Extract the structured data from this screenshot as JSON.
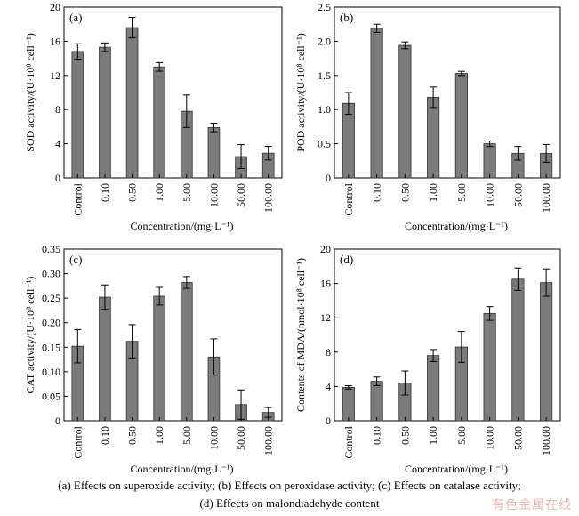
{
  "chart_data": [
    {
      "type": "bar",
      "panel": "(a)",
      "ylabel": "SOD activity/(U·10⁸ cell⁻¹)",
      "xlabel": "Concentration/(mg·L⁻¹)",
      "categories": [
        "Control",
        "0.10",
        "0.50",
        "1.00",
        "5.00",
        "10.00",
        "50.00",
        "100.00"
      ],
      "values": [
        14.8,
        15.3,
        17.6,
        13.0,
        7.8,
        5.9,
        2.5,
        2.9
      ],
      "errors": [
        0.9,
        0.5,
        1.2,
        0.5,
        1.9,
        0.5,
        1.4,
        0.8
      ],
      "ylim": [
        0,
        20
      ],
      "yticks": [
        0,
        4,
        8,
        12,
        16,
        20
      ],
      "ytick_labels": [
        "0",
        "4",
        "8",
        "12",
        "16",
        "20"
      ]
    },
    {
      "type": "bar",
      "panel": "(b)",
      "ylabel": "POD activity/(U·10⁸ cell⁻¹)",
      "xlabel": "Concentration/(mg·L⁻¹)",
      "categories": [
        "Control",
        "0.10",
        "0.50",
        "1.00",
        "5.00",
        "10.00",
        "50.00",
        "100.00"
      ],
      "values": [
        1.09,
        2.19,
        1.94,
        1.18,
        1.53,
        0.5,
        0.36,
        0.36
      ],
      "errors": [
        0.16,
        0.06,
        0.05,
        0.15,
        0.03,
        0.04,
        0.1,
        0.13
      ],
      "ylim": [
        0,
        2.5
      ],
      "yticks": [
        0,
        0.5,
        1.0,
        1.5,
        2.0,
        2.5
      ],
      "ytick_labels": [
        "0",
        "0.5",
        "1.0",
        "1.5",
        "2.0",
        "2.5"
      ]
    },
    {
      "type": "bar",
      "panel": "(c)",
      "ylabel": "CAT activity/(U·10⁸ cell⁻¹)",
      "xlabel": "Concentration/(mg·L⁻¹)",
      "categories": [
        "Control",
        "0.10",
        "0.50",
        "1.00",
        "5.00",
        "10.00",
        "50.00",
        "100.00"
      ],
      "values": [
        0.152,
        0.252,
        0.162,
        0.254,
        0.282,
        0.13,
        0.033,
        0.017
      ],
      "errors": [
        0.034,
        0.025,
        0.034,
        0.018,
        0.012,
        0.037,
        0.03,
        0.01
      ],
      "ylim": [
        0,
        0.35
      ],
      "yticks": [
        0,
        0.05,
        0.1,
        0.15,
        0.2,
        0.25,
        0.3,
        0.35
      ],
      "ytick_labels": [
        "0",
        "0.05",
        "0.10",
        "0.15",
        "0.20",
        "0.25",
        "0.30",
        "0.35"
      ]
    },
    {
      "type": "bar",
      "panel": "(d)",
      "ylabel": "Contents of MDA/(nmol·10⁸ cell⁻¹)",
      "xlabel": "Concentration/(mg·L⁻¹)",
      "categories": [
        "Control",
        "0.10",
        "0.50",
        "1.00",
        "5.00",
        "10.00",
        "50.00",
        "100.00"
      ],
      "values": [
        3.9,
        4.6,
        4.4,
        7.6,
        8.6,
        12.5,
        16.5,
        16.1
      ],
      "errors": [
        0.2,
        0.5,
        1.4,
        0.7,
        1.8,
        0.8,
        1.3,
        1.6
      ],
      "ylim": [
        0,
        20
      ],
      "yticks": [
        0,
        4,
        8,
        12,
        16,
        20
      ],
      "ytick_labels": [
        "0",
        "4",
        "8",
        "12",
        "16",
        "20"
      ]
    }
  ],
  "caption": {
    "line1": "(a) Effects on superoxide activity; (b) Effects on peroxidase activity; (c) Effects on catalase activity;",
    "line2": "(d) Effects on malondiadehyde content"
  },
  "watermark": "有色金属在线",
  "colors": {
    "bar": "#7b7b7b",
    "bar_stroke": "#333333",
    "axis": "#000000"
  }
}
